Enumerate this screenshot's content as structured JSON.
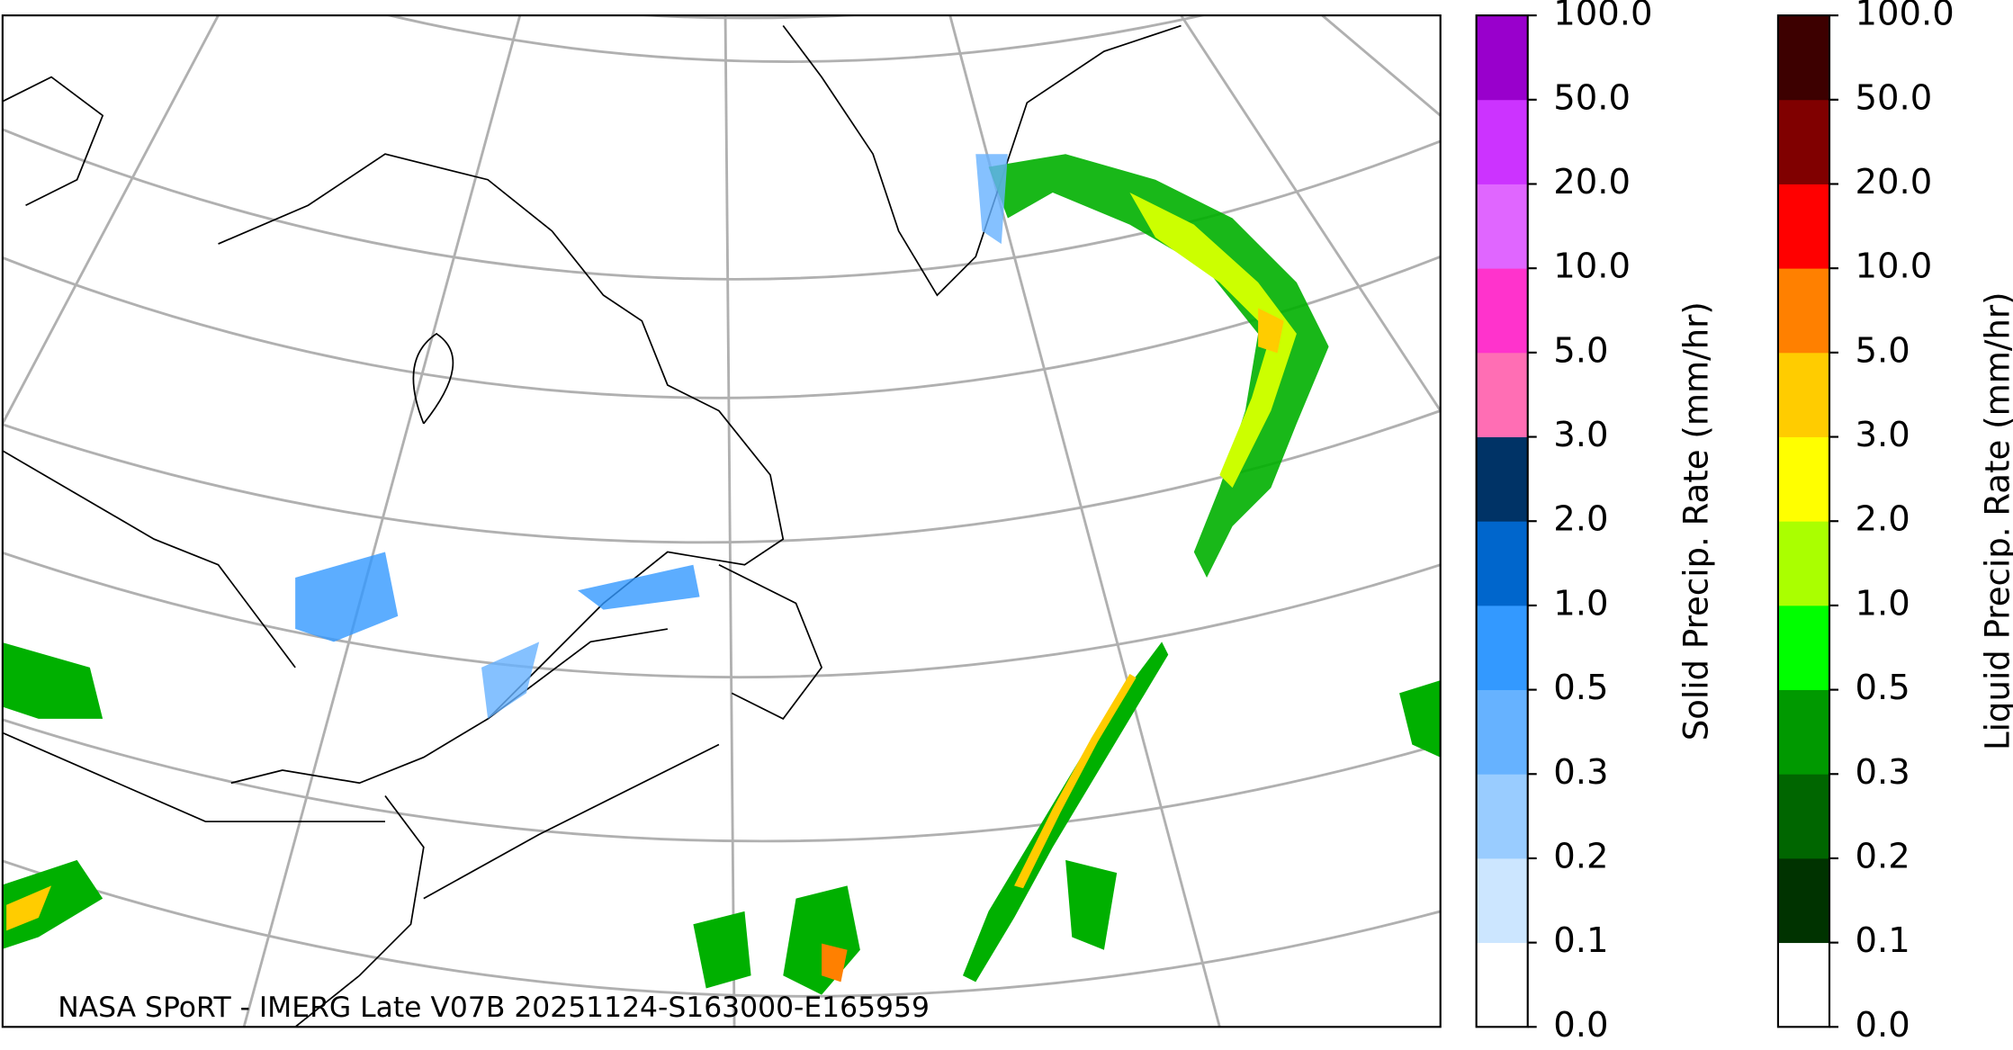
{
  "map": {
    "caption": "NASA SPoRT - IMERG Late V07B 20251124-S163000-E165959"
  },
  "colorbars": [
    {
      "label": "Solid Precip. Rate (mm/hr)",
      "colors": [
        "#ffffff",
        "#cce6ff",
        "#99ccff",
        "#66b2ff",
        "#3399ff",
        "#0066cc",
        "#003366",
        "#ff6eb4",
        "#ff33cc",
        "#e066ff",
        "#cc33ff",
        "#9900cc"
      ],
      "ticks": [
        {
          "value": 0,
          "label": "0.0"
        },
        {
          "value": 0.1,
          "label": "0.1"
        },
        {
          "value": 0.2,
          "label": "0.2"
        },
        {
          "value": 0.3,
          "label": "0.3"
        },
        {
          "value": 0.5,
          "label": "0.5"
        },
        {
          "value": 1,
          "label": "1.0"
        },
        {
          "value": 2,
          "label": "2.0"
        },
        {
          "value": 3,
          "label": "3.0"
        },
        {
          "value": 5,
          "label": "5.0"
        },
        {
          "value": 10,
          "label": "10.0"
        },
        {
          "value": 20,
          "label": "20.0"
        },
        {
          "value": 50,
          "label": "50.0"
        },
        {
          "value": 100,
          "label": "100.0"
        }
      ]
    },
    {
      "label": "Liquid Precip. Rate (mm/hr)",
      "colors": [
        "#ffffff",
        "#003300",
        "#006600",
        "#009900",
        "#00ff00",
        "#aaff00",
        "#ffff00",
        "#ffcc00",
        "#ff8000",
        "#ff0000",
        "#800000",
        "#3d0000"
      ],
      "ticks": [
        {
          "value": 0,
          "label": "0.0"
        },
        {
          "value": 0.1,
          "label": "0.1"
        },
        {
          "value": 0.2,
          "label": "0.2"
        },
        {
          "value": 0.3,
          "label": "0.3"
        },
        {
          "value": 0.5,
          "label": "0.5"
        },
        {
          "value": 1,
          "label": "1.0"
        },
        {
          "value": 2,
          "label": "2.0"
        },
        {
          "value": 3,
          "label": "3.0"
        },
        {
          "value": 5,
          "label": "5.0"
        },
        {
          "value": 10,
          "label": "10.0"
        },
        {
          "value": 20,
          "label": "20.0"
        },
        {
          "value": 50,
          "label": "50.0"
        },
        {
          "value": 100,
          "label": "100.0"
        }
      ]
    }
  ]
}
